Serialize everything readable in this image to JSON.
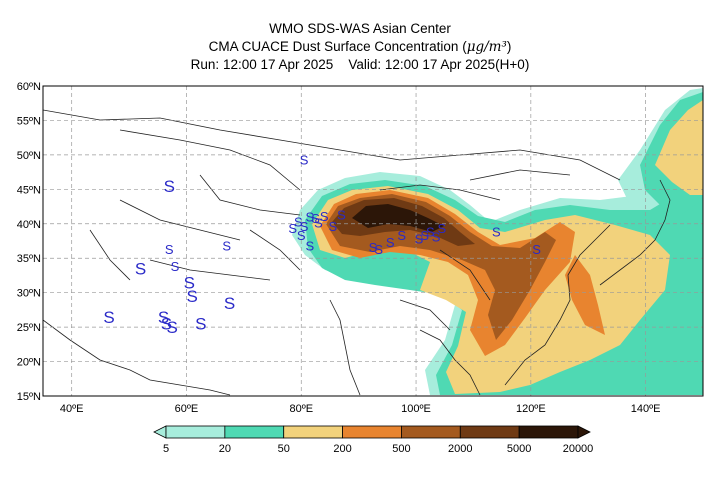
{
  "header": {
    "line1": "WMO SDS-WAS Asian Center",
    "line2_text": "CMA CUACE Dust Surface Concentration (",
    "line2_unit": "μg/m³",
    "line2_close": ")",
    "line3_run": "Run: 12:00 17 Apr 2025",
    "line3_valid": "Valid: 12:00 17 Apr 2025(H+0)"
  },
  "map": {
    "lon_range": [
      35,
      150
    ],
    "lat_range": [
      15,
      60
    ],
    "lat_ticks": [
      {
        "value": 60,
        "label": "60ºN"
      },
      {
        "value": 55,
        "label": "55ºN"
      },
      {
        "value": 50,
        "label": "50ºN"
      },
      {
        "value": 45,
        "label": "45ºN"
      },
      {
        "value": 40,
        "label": "40ºN"
      },
      {
        "value": 35,
        "label": "35ºN"
      },
      {
        "value": 30,
        "label": "30ºN"
      },
      {
        "value": 25,
        "label": "25ºN"
      },
      {
        "value": 20,
        "label": "20ºN"
      },
      {
        "value": 15,
        "label": "15ºN"
      }
    ],
    "lon_ticks": [
      {
        "value": 40,
        "label": "40ºE"
      },
      {
        "value": 60,
        "label": "60ºE"
      },
      {
        "value": 80,
        "label": "80ºE"
      },
      {
        "value": 100,
        "label": "100ºE"
      },
      {
        "value": 120,
        "label": "120ºE"
      },
      {
        "value": 140,
        "label": "140ºE"
      }
    ],
    "grid": true,
    "dust_symbol": "S",
    "dust_observations": [
      {
        "lon": 78.5,
        "lat": 39.5
      },
      {
        "lon": 79.5,
        "lat": 40.5
      },
      {
        "lon": 80.5,
        "lat": 39.8
      },
      {
        "lon": 81.5,
        "lat": 41.2
      },
      {
        "lon": 82.5,
        "lat": 41.0
      },
      {
        "lon": 83.0,
        "lat": 40.3
      },
      {
        "lon": 84.0,
        "lat": 41.3
      },
      {
        "lon": 80.0,
        "lat": 38.5
      },
      {
        "lon": 81.5,
        "lat": 37.0
      },
      {
        "lon": 85.5,
        "lat": 39.8
      },
      {
        "lon": 87.0,
        "lat": 41.5
      },
      {
        "lon": 92.5,
        "lat": 36.8
      },
      {
        "lon": 93.5,
        "lat": 36.5
      },
      {
        "lon": 95.5,
        "lat": 37.5
      },
      {
        "lon": 97.5,
        "lat": 38.5
      },
      {
        "lon": 100.5,
        "lat": 38.0
      },
      {
        "lon": 101.5,
        "lat": 38.5
      },
      {
        "lon": 102.5,
        "lat": 39.0
      },
      {
        "lon": 103.5,
        "lat": 38.3
      },
      {
        "lon": 104.5,
        "lat": 39.5
      },
      {
        "lon": 114.0,
        "lat": 39.0
      },
      {
        "lon": 121.0,
        "lat": 36.5
      },
      {
        "lon": 80.5,
        "lat": 49.5
      },
      {
        "lon": 57.0,
        "lat": 45.5
      },
      {
        "lon": 52.0,
        "lat": 33.5
      },
      {
        "lon": 57.0,
        "lat": 36.5
      },
      {
        "lon": 58.0,
        "lat": 34.0
      },
      {
        "lon": 60.5,
        "lat": 31.5
      },
      {
        "lon": 61.0,
        "lat": 29.5
      },
      {
        "lon": 46.5,
        "lat": 26.5
      },
      {
        "lon": 56.0,
        "lat": 26.5
      },
      {
        "lon": 56.5,
        "lat": 25.5
      },
      {
        "lon": 57.5,
        "lat": 25.0
      },
      {
        "lon": 62.5,
        "lat": 25.5
      },
      {
        "lon": 67.5,
        "lat": 28.5
      },
      {
        "lon": 67.0,
        "lat": 37.0
      }
    ]
  },
  "colorbar": {
    "levels": [
      "5",
      "20",
      "50",
      "200",
      "500",
      "2000",
      "5000",
      "20000"
    ],
    "colors": [
      "#a7eddc",
      "#4fd9b3",
      "#f2d27c",
      "#e8842f",
      "#a45a1f",
      "#6f3a14",
      "#2c1608"
    ]
  }
}
